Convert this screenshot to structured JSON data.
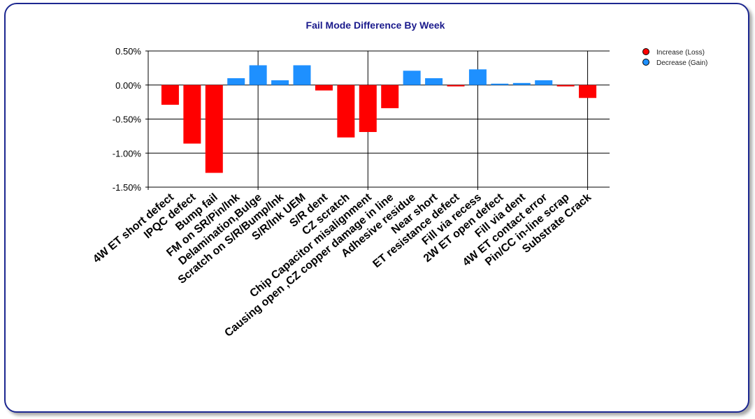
{
  "chart_data": {
    "type": "bar",
    "title": "Fail Mode Difference By Week",
    "xlabel": "",
    "ylabel": "",
    "ylim": [
      -1.5,
      0.5
    ],
    "yticks": [
      0.5,
      0.0,
      -0.5,
      -1.0,
      -1.5
    ],
    "ytick_labels": [
      "0.50%",
      "0.00%",
      "-0.50%",
      "-1.00%",
      "-1.50%"
    ],
    "grid": true,
    "legend_position": "top-right",
    "categories": [
      "4W ET short defect",
      "IPQC defect",
      "Bump fail",
      "FM on SR/Pin/Ink",
      "Delamination,Bulge",
      "Scratch on S/R/Bump/Ink",
      "S/R/Ink UEM",
      "S/R dent",
      "CZ  scratch",
      "Chip Capacitor misalignment",
      "Causing open ,CZ copper damage in line",
      "Adhesive residue",
      "Near short",
      "ET resistance defect",
      "Fill via recess",
      "2W ET open defect",
      "Fill  via  dent",
      "4W ET contact error",
      "Pin/CC in-line scrap",
      "Substrate Crack"
    ],
    "values": [
      -0.29,
      -0.86,
      -1.29,
      0.1,
      0.29,
      0.07,
      0.29,
      -0.08,
      -0.77,
      -0.69,
      -0.34,
      0.21,
      0.1,
      -0.02,
      0.23,
      0.02,
      0.03,
      0.07,
      -0.02,
      -0.19
    ],
    "series": [
      {
        "name": "Increase (Loss)",
        "color": "#ff0000"
      },
      {
        "name": "Decrease (Gain)",
        "color": "#1e90ff"
      }
    ]
  }
}
